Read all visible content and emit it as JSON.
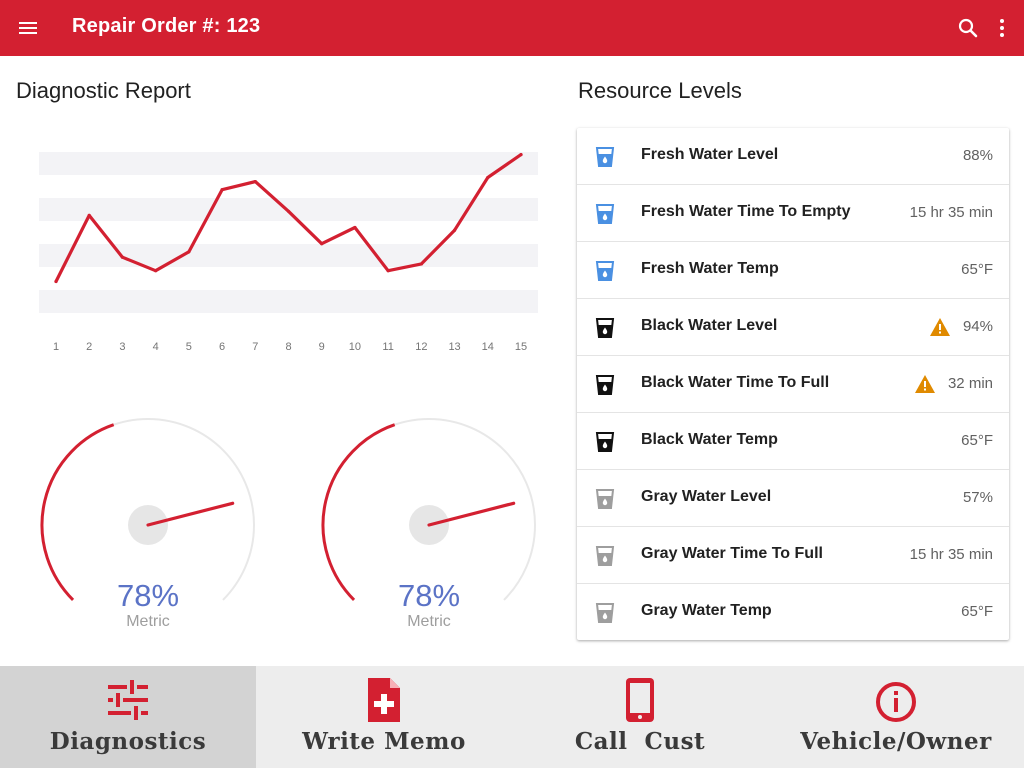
{
  "appbar": {
    "title": "Repair Order #: 123",
    "menu_icon": "menu-icon",
    "search_icon": "search-icon",
    "more_icon": "more-vert-icon",
    "color": "#d32031"
  },
  "diagnostic": {
    "title": "Diagnostic Report",
    "chart_data": {
      "type": "line",
      "title": "",
      "xlabel": "",
      "ylabel": "",
      "x": [
        "1",
        "2",
        "3",
        "4",
        "5",
        "6",
        "7",
        "8",
        "9",
        "10",
        "11",
        "12",
        "13",
        "14",
        "15"
      ],
      "values": [
        10,
        59,
        28,
        18,
        32,
        78,
        84,
        62,
        38,
        50,
        18,
        23,
        48,
        87,
        104
      ],
      "ylim": [
        0,
        100
      ],
      "color": "#d32031",
      "grid": true
    },
    "gauges": [
      {
        "value": "78%",
        "fraction": 0.78,
        "label": "Metric"
      },
      {
        "value": "78%",
        "fraction": 0.78,
        "label": "Metric"
      }
    ]
  },
  "resources": {
    "title": "Resource Levels",
    "rows": [
      {
        "label": "Fresh Water Level",
        "value": "88%",
        "icon": "fresh-water-icon",
        "color": "#4a90e2",
        "warning": false
      },
      {
        "label": "Fresh Water Time To Empty",
        "value": "15 hr 35 min",
        "icon": "fresh-water-icon",
        "color": "#4a90e2",
        "warning": false
      },
      {
        "label": "Fresh Water Temp",
        "value": "65°F",
        "icon": "fresh-water-icon",
        "color": "#4a90e2",
        "warning": false
      },
      {
        "label": "Black Water Level",
        "value": "94%",
        "icon": "black-water-icon",
        "color": "#111111",
        "warning": true
      },
      {
        "label": "Black Water Time To Full",
        "value": "32 min",
        "icon": "black-water-icon",
        "color": "#111111",
        "warning": true
      },
      {
        "label": "Black Water Temp",
        "value": "65°F",
        "icon": "black-water-icon",
        "color": "#111111",
        "warning": false
      },
      {
        "label": "Gray Water Level",
        "value": "57%",
        "icon": "gray-water-icon",
        "color": "#9e9e9e",
        "warning": false
      },
      {
        "label": "Gray Water Time To Full",
        "value": "15 hr 35 min",
        "icon": "gray-water-icon",
        "color": "#9e9e9e",
        "warning": false
      },
      {
        "label": "Gray Water Temp",
        "value": "65°F",
        "icon": "gray-water-icon",
        "color": "#9e9e9e",
        "warning": false
      }
    ],
    "warning_color": "#e08a00"
  },
  "bottom_nav": {
    "items": [
      {
        "label": "Diagnostics",
        "icon": "tune-icon",
        "active": true
      },
      {
        "label": "Write Memo",
        "icon": "note-add-icon",
        "active": false
      },
      {
        "label": "Call  Cust",
        "icon": "phone-icon",
        "active": false
      },
      {
        "label": "Vehicle/Owner",
        "icon": "info-icon",
        "active": false
      }
    ],
    "icon_color": "#d32031"
  }
}
